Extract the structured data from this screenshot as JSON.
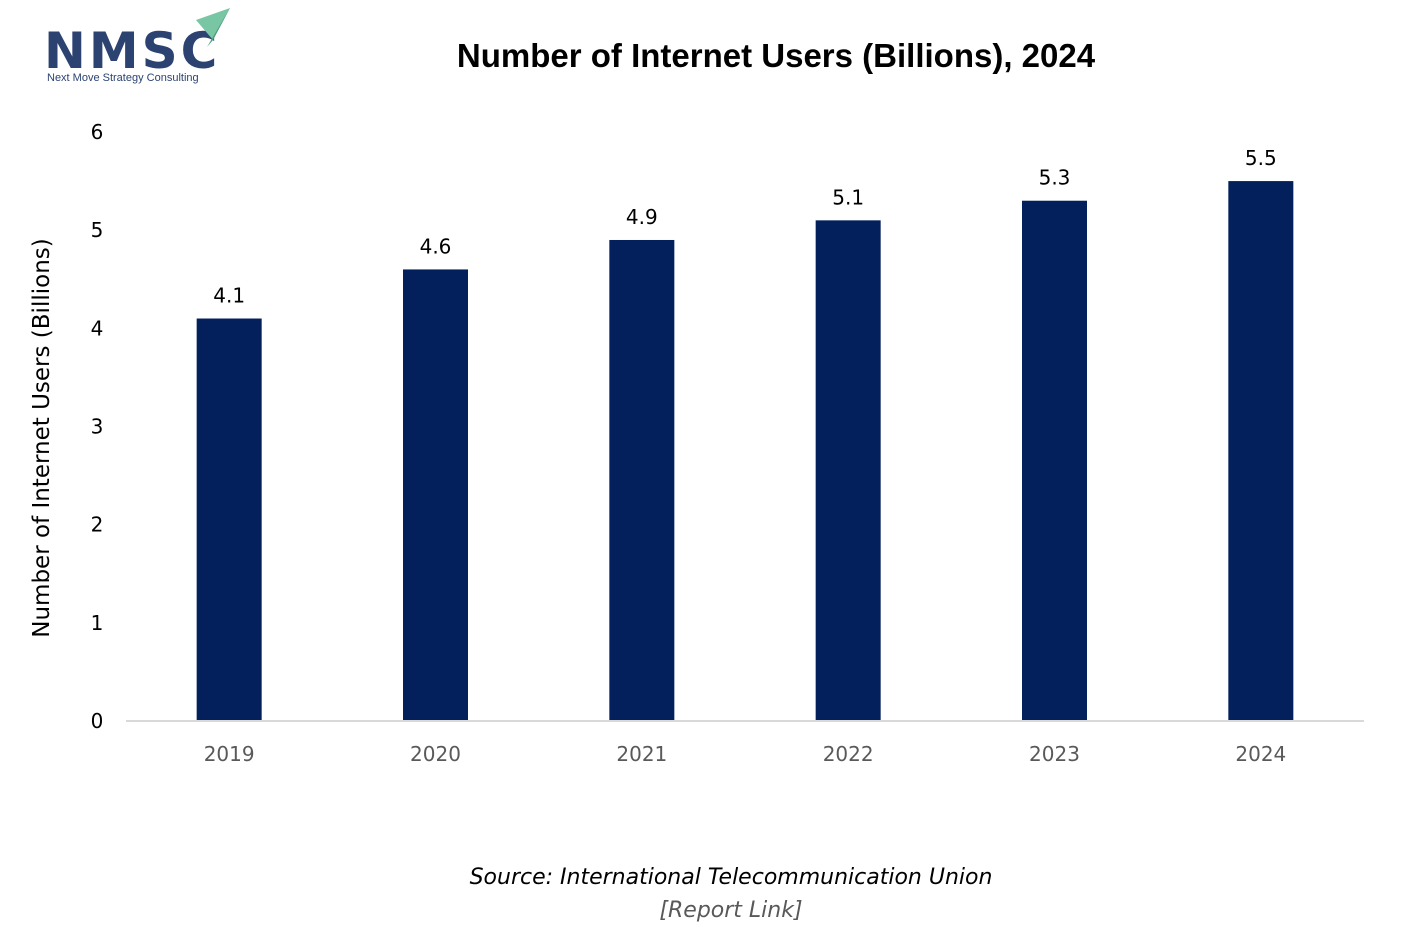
{
  "logo": {
    "letters": "NMSC",
    "tagline": "Next Move Strategy Consulting",
    "icon": "paper-plane-icon"
  },
  "source": {
    "text": "Source: International Telecommunication Union",
    "link": "[Report Link]"
  },
  "colors": {
    "bar": "#03205C",
    "logo_text": "#2C4372",
    "logo_plane": "#78C6A3",
    "axis": "#D9D9D9",
    "tick_text": "#000000",
    "category_text": "#595959"
  },
  "chart_data": {
    "type": "bar",
    "title": "Number of Internet Users (Billions), 2024",
    "xlabel": "",
    "ylabel": "Number of Internet Users (Billions)",
    "categories": [
      "2019",
      "2020",
      "2021",
      "2022",
      "2023",
      "2024"
    ],
    "values": [
      4.1,
      4.6,
      4.9,
      5.1,
      5.3,
      5.5
    ],
    "data_labels": [
      "4.1",
      "4.6",
      "4.9",
      "5.1",
      "5.3",
      "5.5"
    ],
    "y_ticks": [
      "0",
      "1",
      "2",
      "3",
      "4",
      "5",
      "6"
    ],
    "ylim": [
      0,
      6
    ],
    "grid": false,
    "legend": "none"
  }
}
